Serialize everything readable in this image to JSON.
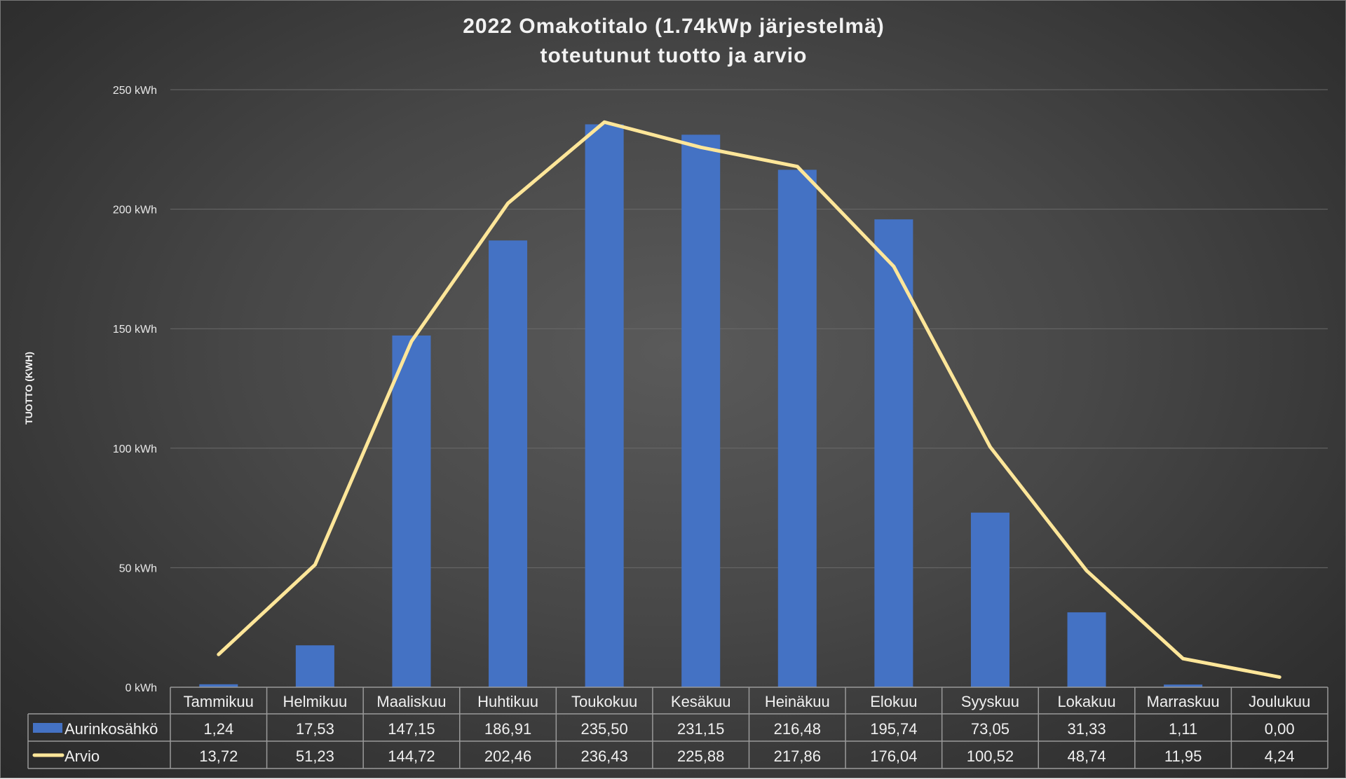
{
  "chart_data": {
    "type": "bar+line",
    "title": [
      "2022 Omakotitalo (1.74kWp järjestelmä)",
      "toteutunut tuotto ja arvio"
    ],
    "ylabel": "TUOTTO (KWH)",
    "ylim": [
      0,
      250
    ],
    "yticks": [
      "0 kWh",
      "50 kWh",
      "100 kWh",
      "150 kWh",
      "200 kWh",
      "250 kWh"
    ],
    "ytick_values": [
      0,
      50,
      100,
      150,
      200,
      250
    ],
    "grid": true,
    "data_table": true,
    "categories": [
      "Tammikuu",
      "Helmikuu",
      "Maaliskuu",
      "Huhtikuu",
      "Toukokuu",
      "Kesäkuu",
      "Heinäkuu",
      "Elokuu",
      "Syyskuu",
      "Lokakuu",
      "Marraskuu",
      "Joulukuu"
    ],
    "series": [
      {
        "name": "Aurinkosähkö",
        "type": "bar",
        "color": "#4472c4",
        "values": [
          1.24,
          17.53,
          147.15,
          186.91,
          235.5,
          231.15,
          216.48,
          195.74,
          73.05,
          31.33,
          1.11,
          0.0
        ],
        "labels": [
          "1,24",
          "17,53",
          "147,15",
          "186,91",
          "235,50",
          "231,15",
          "216,48",
          "195,74",
          "73,05",
          "31,33",
          "1,11",
          "0,00"
        ]
      },
      {
        "name": "Arvio",
        "type": "line",
        "color": "#ffe699",
        "values": [
          13.72,
          51.23,
          144.72,
          202.46,
          236.43,
          225.88,
          217.86,
          176.04,
          100.52,
          48.74,
          11.95,
          4.24
        ],
        "labels": [
          "13,72",
          "51,23",
          "144,72",
          "202,46",
          "236,43",
          "225,88",
          "217,86",
          "176,04",
          "100,52",
          "48,74",
          "11,95",
          "4,24"
        ]
      }
    ]
  }
}
